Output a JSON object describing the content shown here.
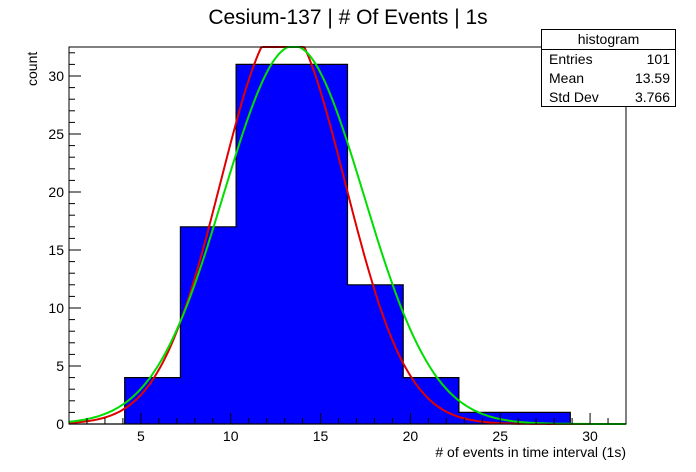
{
  "chart_data": {
    "type": "bar",
    "title": "Cesium-137 | # Of Events | 1s",
    "xlabel": "# of events in time interval (1s)",
    "ylabel": "count",
    "xlim": [
      1,
      32
    ],
    "ylim": [
      0,
      32.5
    ],
    "xticks": [
      5,
      10,
      15,
      20,
      25,
      30
    ],
    "yticks": [
      0,
      5,
      10,
      15,
      20,
      25,
      30
    ],
    "bins": [
      {
        "x0": 1.0,
        "x1": 4.1,
        "value": 0
      },
      {
        "x0": 4.1,
        "x1": 7.2,
        "value": 4
      },
      {
        "x0": 7.2,
        "x1": 10.3,
        "value": 17
      },
      {
        "x0": 10.3,
        "x1": 16.5,
        "value": 31
      },
      {
        "x0": 16.5,
        "x1": 19.6,
        "value": 12
      },
      {
        "x0": 19.6,
        "x1": 22.7,
        "value": 4
      },
      {
        "x0": 22.7,
        "x1": 28.9,
        "value": 1
      },
      {
        "x0": 28.9,
        "x1": 32.0,
        "value": 0
      }
    ],
    "fits": [
      {
        "color": "#e00000",
        "mean": 12.9,
        "sigma": 3.45,
        "amplitude": 34.5
      },
      {
        "color": "#00dd00",
        "mean": 13.5,
        "sigma": 3.9,
        "amplitude": 32.6
      }
    ],
    "bar_color": "#0000ff"
  },
  "stats": {
    "title": "histogram",
    "rows": [
      {
        "label": "Entries",
        "value": "101"
      },
      {
        "label": "Mean",
        "value": "13.59"
      },
      {
        "label": "Std Dev",
        "value": "3.766"
      }
    ]
  }
}
